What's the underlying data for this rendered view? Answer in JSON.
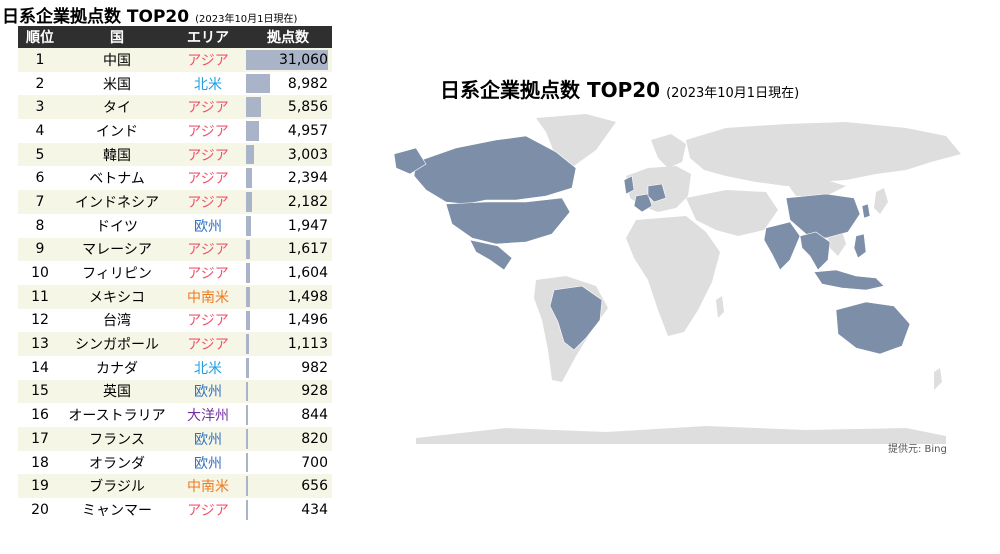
{
  "left": {
    "title": "日系企業拠点数 TOP20",
    "subtitle": "(2023年10月1日現在)",
    "headers": [
      "順位",
      "国",
      "エリア",
      "拠点数"
    ]
  },
  "area_colors": {
    "アジア": "#f0546d",
    "北米": "#1f9fe0",
    "欧州": "#3070c0",
    "中南米": "#ee7a20",
    "大洋州": "#7030a0"
  },
  "bar_color": "#a9b4c8",
  "map": {
    "title": "日系企業拠点数 TOP20",
    "subtitle": "(2023年10月1日現在)",
    "credit": "提供元: Bing",
    "highlight_color": "#7d8ea8",
    "land_color": "#dedede"
  },
  "chart_data": {
    "type": "table",
    "columns": [
      "順位",
      "国",
      "エリア",
      "拠点数"
    ],
    "rows": [
      {
        "rank": "1",
        "country": "中国",
        "area": "アジア",
        "value": 31060,
        "label": "31,060"
      },
      {
        "rank": "2",
        "country": "米国",
        "area": "北米",
        "value": 8982,
        "label": "8,982"
      },
      {
        "rank": "3",
        "country": "タイ",
        "area": "アジア",
        "value": 5856,
        "label": "5,856"
      },
      {
        "rank": "4",
        "country": "インド",
        "area": "アジア",
        "value": 4957,
        "label": "4,957"
      },
      {
        "rank": "5",
        "country": "韓国",
        "area": "アジア",
        "value": 3003,
        "label": "3,003"
      },
      {
        "rank": "6",
        "country": "ベトナム",
        "area": "アジア",
        "value": 2394,
        "label": "2,394"
      },
      {
        "rank": "7",
        "country": "インドネシア",
        "area": "アジア",
        "value": 2182,
        "label": "2,182"
      },
      {
        "rank": "8",
        "country": "ドイツ",
        "area": "欧州",
        "value": 1947,
        "label": "1,947"
      },
      {
        "rank": "9",
        "country": "マレーシア",
        "area": "アジア",
        "value": 1617,
        "label": "1,617"
      },
      {
        "rank": "10",
        "country": "フィリピン",
        "area": "アジア",
        "value": 1604,
        "label": "1,604"
      },
      {
        "rank": "11",
        "country": "メキシコ",
        "area": "中南米",
        "value": 1498,
        "label": "1,498"
      },
      {
        "rank": "12",
        "country": "台湾",
        "area": "アジア",
        "value": 1496,
        "label": "1,496"
      },
      {
        "rank": "13",
        "country": "シンガポール",
        "area": "アジア",
        "value": 1113,
        "label": "1,113"
      },
      {
        "rank": "14",
        "country": "カナダ",
        "area": "北米",
        "value": 982,
        "label": "982"
      },
      {
        "rank": "15",
        "country": "英国",
        "area": "欧州",
        "value": 928,
        "label": "928"
      },
      {
        "rank": "16",
        "country": "オーストラリア",
        "area": "大洋州",
        "value": 844,
        "label": "844"
      },
      {
        "rank": "17",
        "country": "フランス",
        "area": "欧州",
        "value": 820,
        "label": "820"
      },
      {
        "rank": "18",
        "country": "オランダ",
        "area": "欧州",
        "value": 700,
        "label": "700"
      },
      {
        "rank": "19",
        "country": "ブラジル",
        "area": "中南米",
        "value": 656,
        "label": "656"
      },
      {
        "rank": "20",
        "country": "ミャンマー",
        "area": "アジア",
        "value": 434,
        "label": "434"
      }
    ],
    "bar_max": 31060
  }
}
